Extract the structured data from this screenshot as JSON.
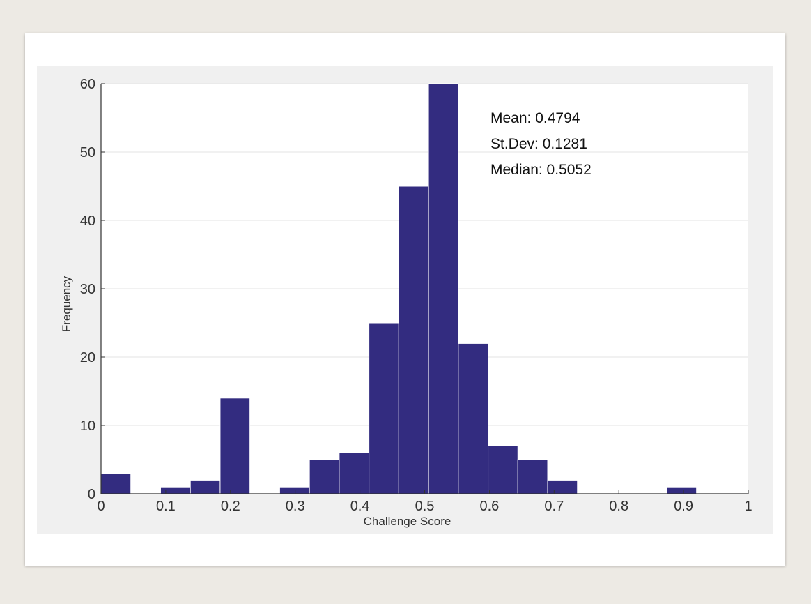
{
  "colors": {
    "bar_fill": "#332c80",
    "bar_edge": "#ffffff",
    "axis": "#333333",
    "grid": "#e3e3e3",
    "plot_background": "#ffffff",
    "panel_background": "#f0f0f0"
  },
  "annotations": {
    "mean": "Mean: 0.4794",
    "stdev": "St.Dev: 0.1281",
    "median": "Median: 0.5052"
  },
  "chart_data": {
    "type": "bar",
    "subtype": "histogram",
    "xlabel": "Challenge Score",
    "ylabel": "Frequency",
    "xlim": [
      0,
      1
    ],
    "ylim": [
      0,
      60
    ],
    "xticks": [
      0,
      0.1,
      0.2,
      0.3,
      0.4,
      0.5,
      0.6,
      0.7,
      0.8,
      0.9,
      1
    ],
    "xtick_labels": [
      "0",
      "0.1",
      "0.2",
      "0.3",
      "0.4",
      "0.5",
      "0.6",
      "0.7",
      "0.8",
      "0.9",
      "1"
    ],
    "yticks": [
      0,
      10,
      20,
      30,
      40,
      50,
      60
    ],
    "ytick_labels": [
      "0",
      "10",
      "20",
      "30",
      "40",
      "50",
      "60"
    ],
    "grid": "horizontal",
    "bin_width": 0.046,
    "bins": [
      {
        "x_start": 0.0,
        "value": 3
      },
      {
        "x_start": 0.046,
        "value": 0
      },
      {
        "x_start": 0.092,
        "value": 1
      },
      {
        "x_start": 0.138,
        "value": 2
      },
      {
        "x_start": 0.184,
        "value": 14
      },
      {
        "x_start": 0.23,
        "value": 0
      },
      {
        "x_start": 0.276,
        "value": 1
      },
      {
        "x_start": 0.322,
        "value": 5
      },
      {
        "x_start": 0.368,
        "value": 6
      },
      {
        "x_start": 0.414,
        "value": 25
      },
      {
        "x_start": 0.46,
        "value": 45
      },
      {
        "x_start": 0.506,
        "value": 60
      },
      {
        "x_start": 0.552,
        "value": 22
      },
      {
        "x_start": 0.598,
        "value": 7
      },
      {
        "x_start": 0.644,
        "value": 5
      },
      {
        "x_start": 0.69,
        "value": 2
      },
      {
        "x_start": 0.736,
        "value": 0
      },
      {
        "x_start": 0.782,
        "value": 0
      },
      {
        "x_start": 0.828,
        "value": 0
      },
      {
        "x_start": 0.874,
        "value": 1
      },
      {
        "x_start": 0.92,
        "value": 0
      }
    ]
  }
}
